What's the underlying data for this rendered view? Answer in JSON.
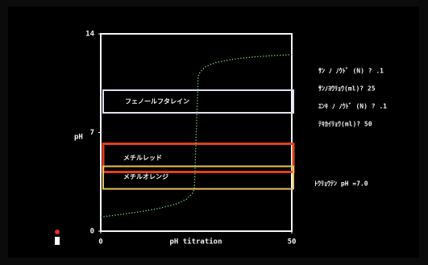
{
  "chart_data": {
    "type": "line",
    "x_label": "pH  titration",
    "y_label": "pH",
    "x": [
      0,
      5,
      10,
      15,
      20,
      22.5,
      24,
      24.5,
      25,
      25.5,
      26,
      27.5,
      30,
      35,
      40,
      45,
      50
    ],
    "series": [
      {
        "color": "#7fd88a",
        "values": [
          1.0,
          1.18,
          1.37,
          1.6,
          1.95,
          2.28,
          2.69,
          3.0,
          7.0,
          11.0,
          11.29,
          11.68,
          11.96,
          12.22,
          12.36,
          12.46,
          12.52
        ]
      }
    ],
    "xlim": [
      0,
      50
    ],
    "xticks": [
      0,
      50
    ],
    "ylim": [
      0,
      14
    ],
    "yticks": [
      0,
      7,
      14
    ],
    "indicators": [
      {
        "name": "フェノールフタレイン",
        "range": [
          8.4,
          10.0
        ],
        "color": "#e6dcf0",
        "text_color": "#ffffff"
      },
      {
        "name": "メチルレッド",
        "range": [
          4.2,
          6.2
        ],
        "color": "#e0401a",
        "text_color": "#ff4a4a"
      },
      {
        "name": "メチルオレンジ",
        "range": [
          3.0,
          4.6
        ],
        "color": "#e8c060",
        "text_color": "#ffd35a"
      }
    ],
    "inputs": [
      "ｻﾝ ﾉ ﾉｳﾄﾞ (N) ? .1",
      "ｻﾝﾉﾖｳﾘｮｳ(ml)? 25",
      "ｴﾝｷ ﾉ ﾉｳﾄﾞ (N) ? .1",
      "ﾃｷｶｲﾘｮｳ(ml)? 50"
    ],
    "result": "ﾄｳﾘｮｳﾃﾝ pH =7.0"
  }
}
